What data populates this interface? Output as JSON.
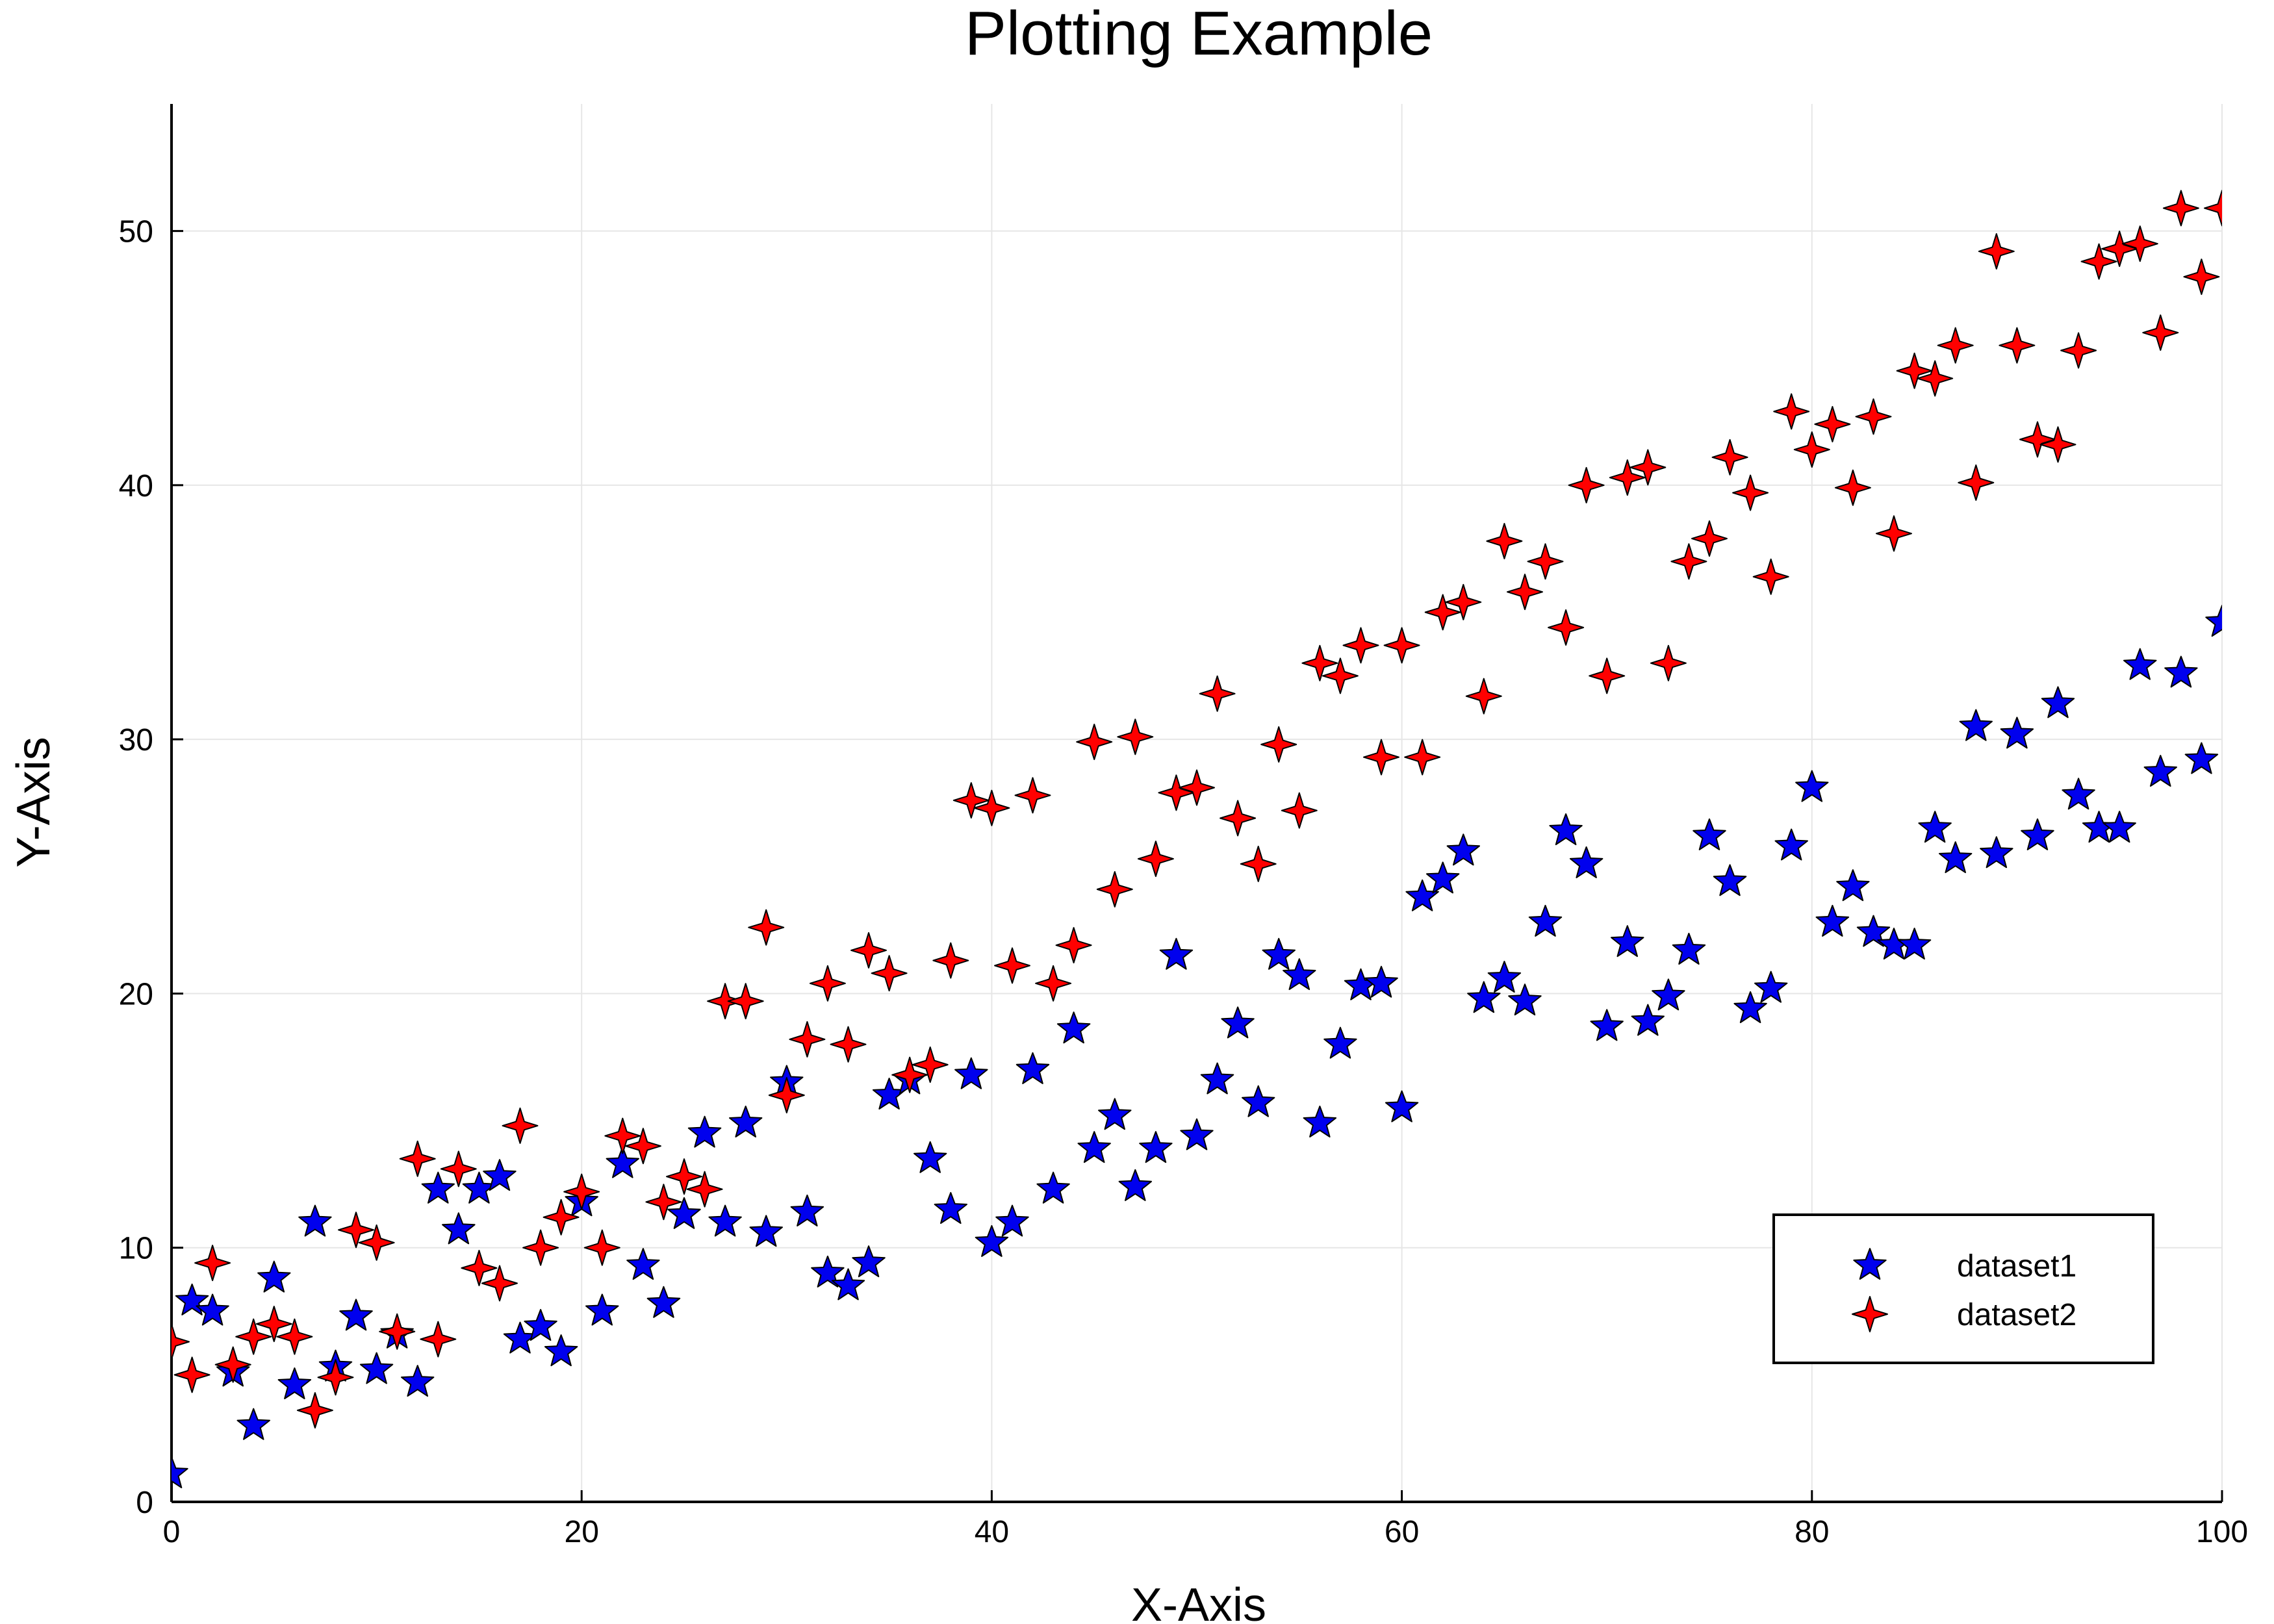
{
  "chart_data": {
    "type": "scatter",
    "title": "Plotting Example",
    "xlabel": "X-Axis",
    "ylabel": "Y-Axis",
    "xlim": [
      0,
      100
    ],
    "ylim": [
      0,
      55
    ],
    "xticks": [
      0,
      20,
      40,
      60,
      80,
      100
    ],
    "yticks": [
      0,
      10,
      20,
      30,
      40,
      50
    ],
    "grid": true,
    "legend_position": "bottom-right",
    "series": [
      {
        "name": "dataset1",
        "marker": "star5",
        "color": "#0000ee",
        "x": [
          0,
          1,
          2,
          3,
          4,
          5,
          6,
          7,
          8,
          9,
          10,
          11,
          12,
          13,
          14,
          15,
          16,
          17,
          18,
          19,
          20,
          21,
          22,
          23,
          24,
          25,
          26,
          27,
          28,
          29,
          30,
          31,
          32,
          33,
          34,
          35,
          36,
          37,
          38,
          39,
          40,
          41,
          42,
          43,
          44,
          45,
          46,
          47,
          48,
          49,
          50,
          51,
          52,
          53,
          54,
          55,
          56,
          57,
          58,
          59,
          60,
          61,
          62,
          63,
          64,
          65,
          66,
          67,
          68,
          69,
          70,
          71,
          72,
          73,
          74,
          75,
          76,
          77,
          78,
          79,
          80,
          81,
          82,
          83,
          84,
          85,
          86,
          87,
          88,
          89,
          90,
          91,
          92,
          93,
          94,
          95,
          96,
          97,
          98,
          99,
          100
        ],
        "y": [
          1.1,
          7.9,
          7.5,
          5.1,
          3.0,
          8.8,
          4.6,
          11.0,
          5.3,
          7.3,
          5.2,
          6.6,
          4.7,
          12.3,
          10.7,
          12.3,
          12.8,
          6.4,
          6.9,
          5.9,
          11.8,
          7.5,
          13.3,
          9.3,
          7.8,
          11.3,
          14.5,
          11.0,
          14.9,
          10.6,
          16.5,
          11.4,
          9.0,
          8.5,
          9.4,
          16.0,
          16.6,
          13.5,
          11.5,
          16.8,
          10.2,
          11.0,
          17.0,
          12.3,
          18.6,
          13.9,
          15.2,
          12.4,
          13.9,
          21.5,
          14.4,
          16.6,
          18.8,
          15.7,
          21.5,
          20.7,
          14.9,
          18.0,
          20.3,
          20.4,
          15.5,
          23.8,
          24.5,
          25.6,
          19.8,
          20.6,
          19.7,
          22.8,
          26.4,
          25.1,
          18.7,
          22.0,
          18.9,
          19.9,
          21.7,
          26.2,
          24.4,
          19.4,
          20.2,
          25.8,
          28.1,
          22.8,
          24.2,
          22.4,
          21.9,
          21.9,
          26.5,
          25.3,
          30.5,
          25.5,
          30.2,
          26.2,
          31.4,
          27.8,
          26.5,
          26.5,
          32.9,
          28.7,
          32.6,
          29.2,
          34.6
        ]
      },
      {
        "name": "dataset2",
        "marker": "star4",
        "color": "#ff0000",
        "x": [
          0,
          1,
          2,
          3,
          4,
          5,
          6,
          7,
          8,
          9,
          10,
          11,
          12,
          13,
          14,
          15,
          16,
          17,
          18,
          19,
          20,
          21,
          22,
          23,
          24,
          25,
          26,
          27,
          28,
          29,
          30,
          31,
          32,
          33,
          34,
          35,
          36,
          37,
          38,
          39,
          40,
          41,
          42,
          43,
          44,
          45,
          46,
          47,
          48,
          49,
          50,
          51,
          52,
          53,
          54,
          55,
          56,
          57,
          58,
          59,
          60,
          61,
          62,
          63,
          64,
          65,
          66,
          67,
          68,
          69,
          70,
          71,
          72,
          73,
          74,
          75,
          76,
          77,
          78,
          79,
          80,
          81,
          82,
          83,
          84,
          85,
          86,
          87,
          88,
          89,
          90,
          91,
          92,
          93,
          94,
          95,
          96,
          97,
          98,
          99,
          100
        ],
        "y": [
          6.3,
          5.0,
          9.4,
          5.4,
          6.5,
          7.0,
          6.5,
          3.6,
          4.9,
          10.7,
          10.2,
          6.7,
          13.5,
          6.4,
          13.1,
          9.2,
          8.6,
          14.8,
          10.0,
          11.2,
          12.2,
          10.0,
          14.4,
          14.0,
          11.8,
          12.8,
          12.3,
          19.7,
          19.7,
          22.6,
          16.0,
          18.2,
          20.4,
          18.0,
          21.7,
          20.8,
          16.8,
          17.2,
          21.3,
          27.6,
          27.3,
          21.1,
          27.8,
          20.4,
          21.9,
          29.9,
          24.1,
          30.1,
          25.3,
          27.9,
          28.1,
          31.8,
          26.9,
          25.1,
          29.8,
          27.2,
          33.0,
          32.5,
          33.7,
          29.3,
          33.7,
          29.3,
          35.0,
          35.4,
          31.7,
          37.8,
          35.8,
          37.0,
          34.4,
          40.0,
          32.5,
          40.3,
          40.7,
          33.0,
          37.0,
          37.9,
          41.1,
          39.7,
          36.4,
          42.9,
          41.4,
          42.4,
          39.9,
          42.7,
          38.1,
          44.5,
          44.2,
          45.5,
          40.1,
          49.2,
          45.5,
          41.8,
          41.6,
          45.3,
          48.8,
          49.3,
          49.5,
          46.0,
          50.9,
          48.2,
          50.9
        ]
      }
    ]
  }
}
